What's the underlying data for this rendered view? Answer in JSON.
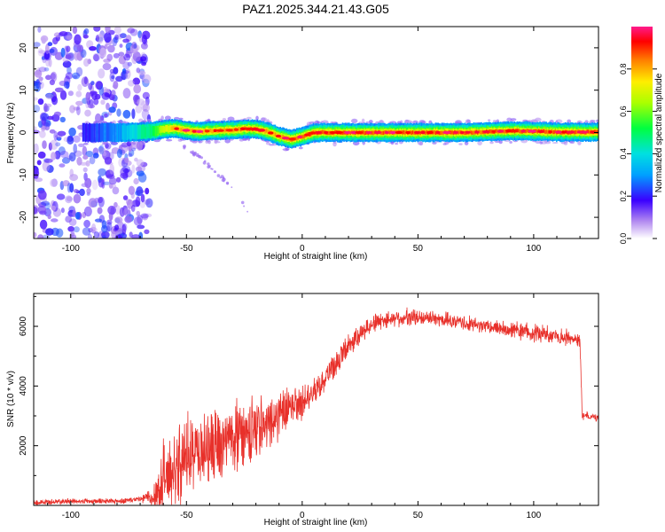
{
  "title": "PAZ1.2025.344.21.43.G05",
  "chart_data": [
    {
      "type": "heatmap",
      "title": "PAZ1.2025.344.21.43.G05",
      "xlabel": "Height of straight line (km)",
      "ylabel": "Frequency (Hz)",
      "xlim": [
        -116,
        128
      ],
      "ylim": [
        -25,
        25
      ],
      "xticks": [
        -100,
        -50,
        0,
        50,
        100
      ],
      "yticks": [
        -20,
        -10,
        0,
        10,
        20
      ],
      "colorbar": {
        "label": "Normalized spectral amplitude",
        "range": [
          0,
          1
        ],
        "ticks": [
          0.0,
          0.2,
          0.4,
          0.6,
          0.8
        ],
        "tick_labels": [
          "0.0",
          "0.2",
          "0.4",
          "0.6",
          "0.8"
        ]
      },
      "noise_region_x": [
        -116,
        -66
      ],
      "ridge": {
        "x": [
          -95,
          -80,
          -65,
          -60,
          -55,
          -50,
          -45,
          -40,
          -35,
          -30,
          -25,
          -20,
          -15,
          -10,
          -5,
          0,
          5,
          10,
          20,
          30,
          40,
          50,
          60,
          70,
          80,
          90,
          100,
          110,
          120,
          128
        ],
        "freq": [
          0,
          0,
          0.3,
          0.8,
          1.0,
          0.5,
          0.2,
          0.4,
          0.5,
          0.6,
          0.9,
          0.8,
          0.2,
          -0.9,
          -1.6,
          -0.9,
          0,
          0,
          0,
          0,
          0,
          0,
          0,
          0,
          0.2,
          0.4,
          0.3,
          0.1,
          0.1,
          0.1
        ],
        "amplitude": [
          0.2,
          0.3,
          0.5,
          0.7,
          0.8,
          0.8,
          0.8,
          0.8,
          0.8,
          0.8,
          0.85,
          0.85,
          0.8,
          0.8,
          0.85,
          0.85,
          0.9,
          0.9,
          0.9,
          0.9,
          0.9,
          0.9,
          0.9,
          0.85,
          0.9,
          0.9,
          0.9,
          0.9,
          0.9,
          0.9
        ]
      },
      "faint_trail": {
        "x": [
          -52,
          -44,
          -38,
          -30,
          -22
        ],
        "freq": [
          -3,
          -6,
          -9,
          -13,
          -20
        ]
      }
    },
    {
      "type": "line",
      "title": "",
      "xlabel": "Height of straight line (km)",
      "ylabel": "SNR (10 * v/v)",
      "xlim": [
        -116,
        128
      ],
      "ylim": [
        0,
        7100
      ],
      "xticks": [
        -100,
        -50,
        0,
        50,
        100
      ],
      "yticks": [
        2000,
        4000,
        6000
      ],
      "color": "#e8302a",
      "envelope": {
        "x": [
          -116,
          -100,
          -80,
          -70,
          -65,
          -62,
          -60,
          -50,
          -40,
          -30,
          -20,
          -10,
          0,
          5,
          10,
          15,
          20,
          30,
          40,
          50,
          60,
          70,
          80,
          90,
          100,
          110,
          118,
          120,
          121,
          128
        ],
        "mean": [
          100,
          150,
          150,
          200,
          300,
          500,
          900,
          1600,
          2000,
          2300,
          2600,
          3000,
          3500,
          3900,
          4300,
          4800,
          5400,
          6100,
          6300,
          6300,
          6250,
          6100,
          6000,
          5900,
          5800,
          5700,
          5600,
          5500,
          3000,
          2950
        ],
        "spread": [
          120,
          120,
          120,
          150,
          400,
          1200,
          1500,
          1600,
          1500,
          1400,
          1300,
          1000,
          700,
          600,
          500,
          500,
          500,
          400,
          350,
          350,
          300,
          300,
          300,
          350,
          400,
          350,
          300,
          300,
          200,
          150
        ]
      }
    }
  ]
}
